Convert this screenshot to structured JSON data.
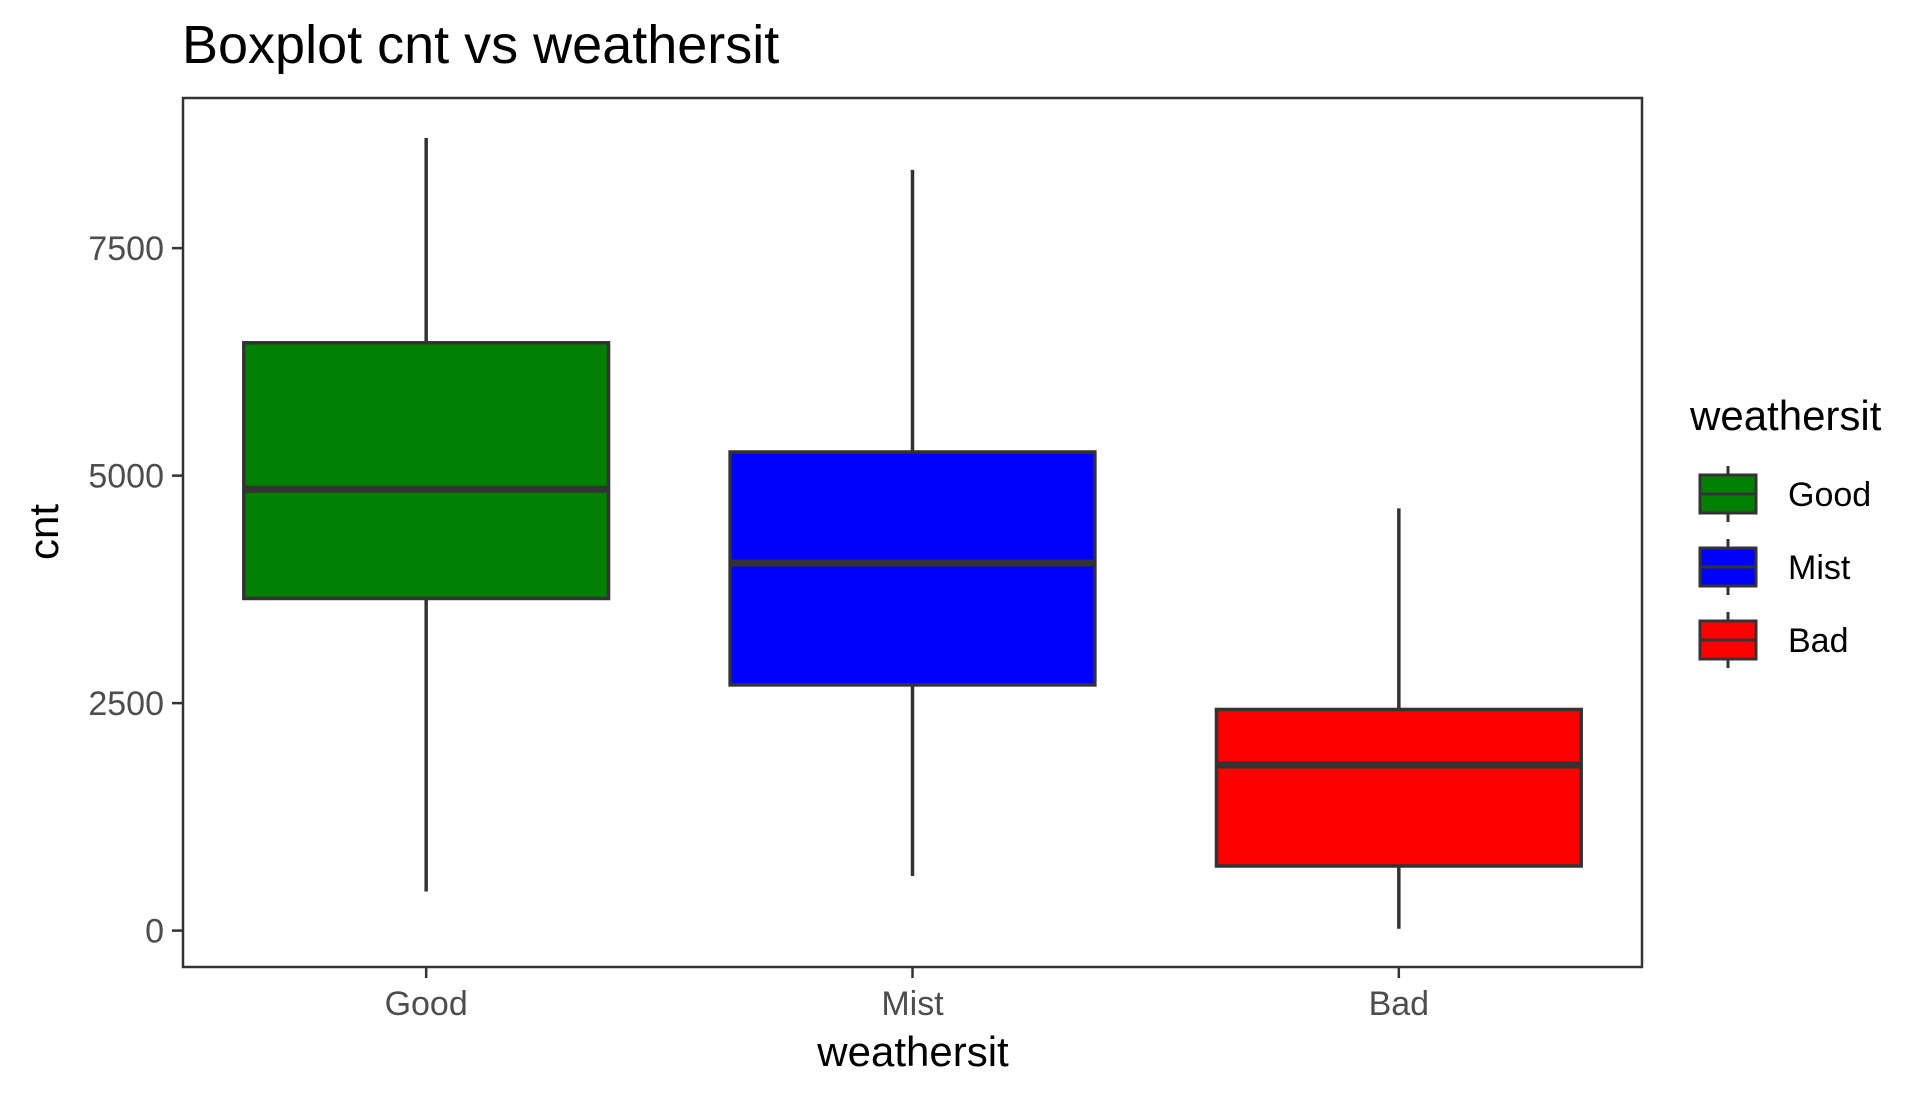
{
  "chart_data": {
    "type": "boxplot",
    "title": "Boxplot cnt vs weathersit",
    "xlabel": "weathersit",
    "ylabel": "cnt",
    "categories": [
      "Good",
      "Mist",
      "Bad"
    ],
    "ylim": [
      -400,
      9150
    ],
    "yticks": [
      0,
      2500,
      5000,
      7500
    ],
    "ytick_labels": [
      "0",
      "2500",
      "5000",
      "7500"
    ],
    "grid": false,
    "legend": {
      "title": "weathersit",
      "position": "right",
      "entries": [
        "Good",
        "Mist",
        "Bad"
      ]
    },
    "series": [
      {
        "category": "Good",
        "color": "#008000",
        "min": 430,
        "q1": 3650,
        "median": 4850,
        "q3": 6460,
        "max": 8710
      },
      {
        "category": "Mist",
        "color": "#0000ff",
        "min": 600,
        "q1": 2700,
        "median": 4040,
        "q3": 5260,
        "max": 8360
      },
      {
        "category": "Bad",
        "color": "#ff0000",
        "min": 20,
        "q1": 710,
        "median": 1820,
        "q3": 2430,
        "max": 4640
      }
    ],
    "box_edge_color": "#333333"
  }
}
